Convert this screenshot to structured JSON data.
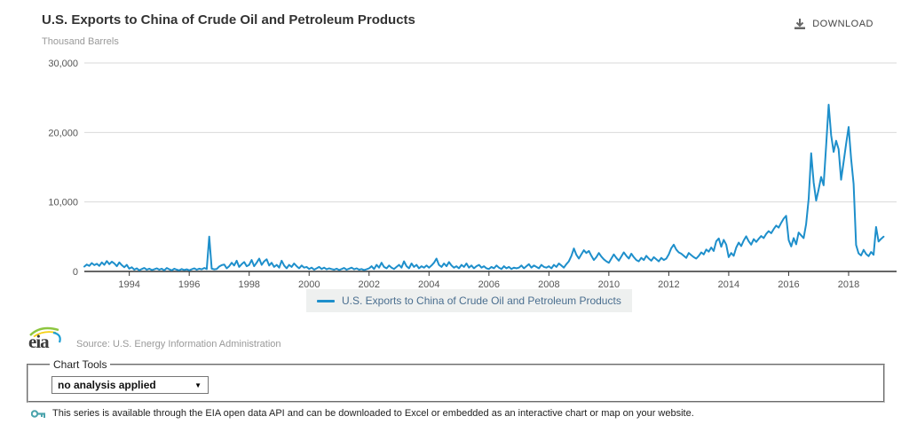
{
  "header": {
    "title": "U.S. Exports to China of Crude Oil and Petroleum Products",
    "unit": "Thousand Barrels",
    "download_label": "DOWNLOAD"
  },
  "chart_data": {
    "type": "line",
    "title": "U.S. Exports to China of Crude Oil and Petroleum Products",
    "ylabel": "Thousand Barrels",
    "xlabel": "",
    "ylim": [
      0,
      30000
    ],
    "x_domain": [
      1992.5,
      2019.6
    ],
    "grid": "horizontal",
    "legend_position": "bottom",
    "yticks": [
      {
        "value": 0,
        "label": "0"
      },
      {
        "value": 10000,
        "label": "10,000"
      },
      {
        "value": 20000,
        "label": "20,000"
      },
      {
        "value": 30000,
        "label": "30,000"
      }
    ],
    "xticks": [
      1994,
      1996,
      1998,
      2000,
      2002,
      2004,
      2006,
      2008,
      2010,
      2012,
      2014,
      2016,
      2018
    ],
    "series": [
      {
        "name": "U.S. Exports to China of Crude Oil and Petroleum Products",
        "color": "#1e8fcb",
        "freq": "monthly",
        "start": {
          "year": 1992,
          "month": 7
        },
        "values": [
          700,
          1000,
          800,
          1200,
          900,
          1100,
          800,
          1300,
          950,
          1500,
          1050,
          1400,
          1150,
          750,
          1300,
          900,
          600,
          950,
          400,
          600,
          250,
          450,
          150,
          350,
          500,
          250,
          400,
          200,
          300,
          450,
          250,
          400,
          150,
          500,
          300,
          150,
          400,
          250,
          150,
          350,
          200,
          300,
          150,
          300,
          450,
          250,
          400,
          300,
          500,
          350,
          5000,
          400,
          300,
          350,
          700,
          900,
          1000,
          450,
          750,
          1250,
          850,
          1550,
          650,
          1050,
          1350,
          750,
          950,
          1650,
          750,
          1250,
          1850,
          950,
          1450,
          1750,
          850,
          1250,
          650,
          950,
          550,
          1550,
          850,
          450,
          950,
          650,
          1150,
          750,
          450,
          850,
          550,
          650,
          350,
          550,
          250,
          450,
          650,
          350,
          550,
          300,
          450,
          350,
          250,
          400,
          200,
          350,
          500,
          250,
          400,
          550,
          300,
          450,
          250,
          350,
          200,
          300,
          450,
          750,
          350,
          950,
          550,
          1250,
          650,
          450,
          850,
          550,
          350,
          650,
          950,
          550,
          1450,
          750,
          450,
          1150,
          650,
          950,
          450,
          750,
          550,
          850,
          550,
          850,
          1250,
          1850,
          950,
          650,
          1150,
          750,
          1350,
          850,
          550,
          750,
          450,
          950,
          650,
          1150,
          550,
          850,
          450,
          750,
          950,
          550,
          750,
          450,
          350,
          650,
          450,
          850,
          550,
          350,
          750,
          450,
          650,
          350,
          550,
          450,
          550,
          850,
          450,
          750,
          1050,
          550,
          850,
          650,
          450,
          950,
          650,
          550,
          750,
          450,
          950,
          650,
          1150,
          850,
          550,
          1050,
          1450,
          2250,
          3300,
          2400,
          1850,
          2450,
          3050,
          2650,
          2950,
          2250,
          1650,
          2050,
          2650,
          2150,
          1750,
          1450,
          1250,
          1850,
          2450,
          1950,
          1550,
          2150,
          2750,
          2250,
          1850,
          2550,
          2050,
          1650,
          1450,
          1950,
          1650,
          2250,
          1850,
          1550,
          2050,
          1750,
          1450,
          1950,
          1650,
          1850,
          2450,
          3350,
          3850,
          3150,
          2750,
          2550,
          2250,
          1950,
          2650,
          2350,
          2050,
          1850,
          2250,
          2750,
          2450,
          3150,
          2850,
          3450,
          2950,
          4350,
          4750,
          3550,
          4550,
          3850,
          2050,
          2650,
          2250,
          3450,
          4150,
          3650,
          4450,
          5050,
          4350,
          3850,
          4650,
          4250,
          4700,
          5100,
          4800,
          5400,
          5800,
          5500,
          6100,
          6600,
          6300,
          7000,
          7600,
          8000,
          4500,
          3600,
          4800,
          3900,
          5600,
          5200,
          4800,
          6800,
          10500,
          17000,
          12800,
          10200,
          11800,
          13600,
          12400,
          18200,
          24000,
          19600,
          17200,
          18800,
          17600,
          13200,
          15800,
          18400,
          20800,
          16200,
          12600,
          3800,
          2600,
          2300,
          3100,
          2500,
          2200,
          2800,
          2400,
          6400,
          4300,
          4700,
          5000
        ]
      }
    ]
  },
  "legend": {
    "label": "U.S. Exports to China of Crude Oil and Petroleum Products"
  },
  "source": {
    "logo_text": "eia",
    "text": "Source: U.S. Energy Information Administration"
  },
  "chart_tools": {
    "label": "Chart Tools",
    "selected_option": "no analysis applied"
  },
  "footer": {
    "note": "This series is available through the EIA open data API and can be downloaded to Excel or embedded as an interactive chart or map on your website."
  },
  "colors": {
    "line": "#1e8fcb",
    "grid": "#d9d9d9",
    "axis": "#333333",
    "tick_text": "#555555",
    "legend_bg": "#eef0ef",
    "legend_text": "#4a6e8f"
  }
}
